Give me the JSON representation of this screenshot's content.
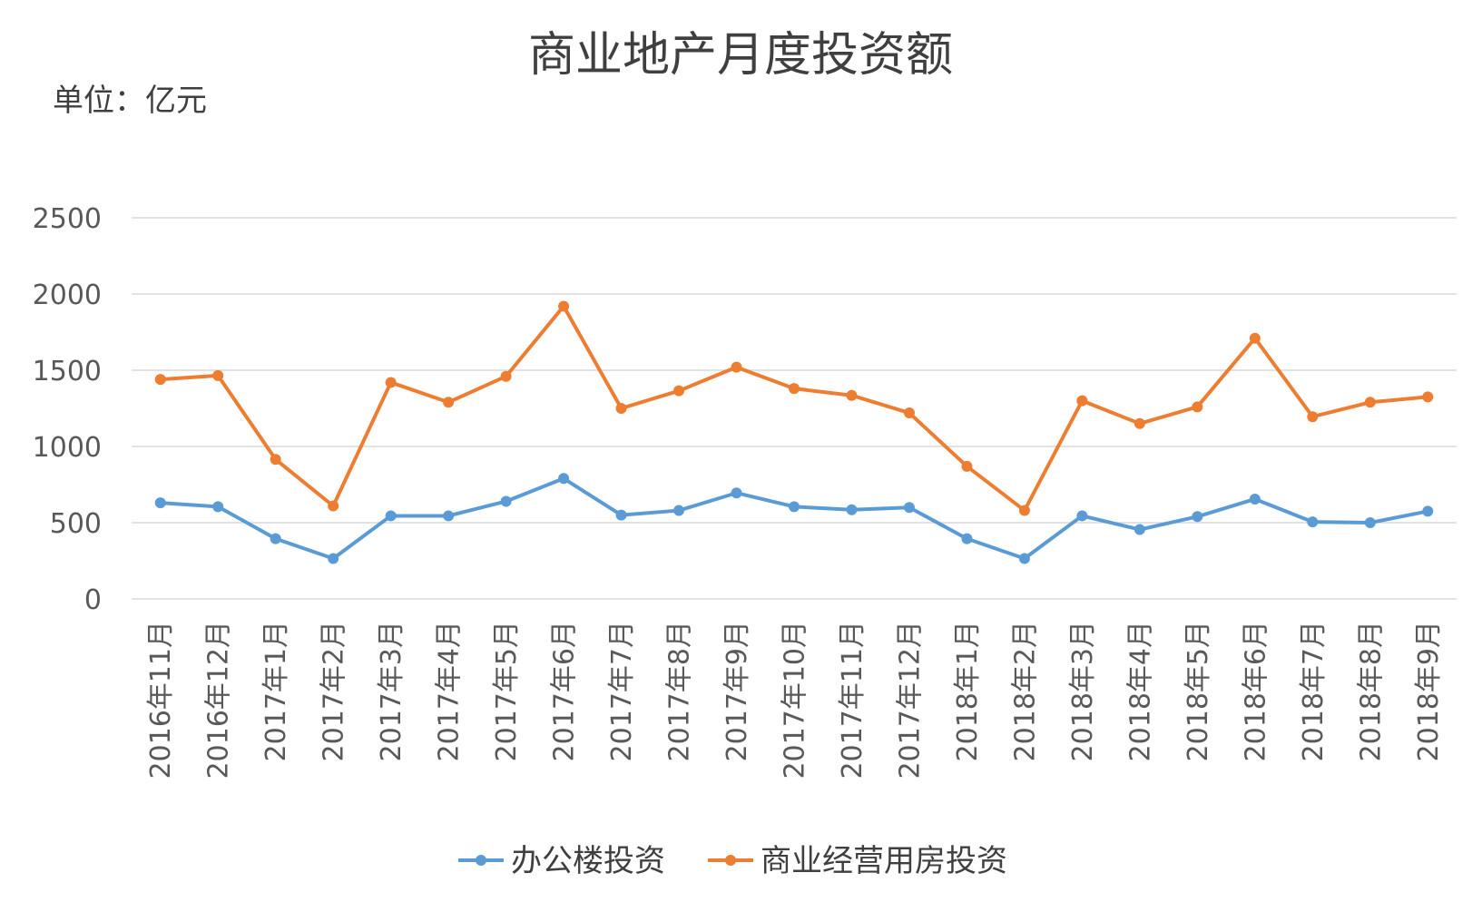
{
  "chart_data": {
    "type": "line",
    "title": "商业地产月度投资额",
    "unit_label": "单位：亿元",
    "xlabel": "",
    "ylabel": "",
    "ylim": [
      0,
      2500
    ],
    "yticks": [
      0,
      500,
      1000,
      1500,
      2000,
      2500
    ],
    "grid": true,
    "legend_position": "bottom",
    "categories": [
      "2016年11月",
      "2016年12月",
      "2017年1月",
      "2017年2月",
      "2017年3月",
      "2017年4月",
      "2017年5月",
      "2017年6月",
      "2017年7月",
      "2017年8月",
      "2017年9月",
      "2017年10月",
      "2017年11月",
      "2017年12月",
      "2018年1月",
      "2018年2月",
      "2018年3月",
      "2018年4月",
      "2018年5月",
      "2018年6月",
      "2018年7月",
      "2018年8月",
      "2018年9月"
    ],
    "series": [
      {
        "name": "办公楼投资",
        "color": "#5b9bd5",
        "values": [
          630,
          605,
          395,
          265,
          545,
          545,
          640,
          790,
          550,
          580,
          695,
          605,
          585,
          600,
          395,
          265,
          545,
          455,
          540,
          655,
          505,
          500,
          575
        ]
      },
      {
        "name": "商业经营用房投资",
        "color": "#ed7d31",
        "values": [
          1440,
          1465,
          915,
          610,
          1420,
          1290,
          1460,
          1920,
          1250,
          1365,
          1520,
          1380,
          1335,
          1220,
          870,
          580,
          1300,
          1150,
          1260,
          1710,
          1195,
          1290,
          1325
        ]
      }
    ]
  }
}
